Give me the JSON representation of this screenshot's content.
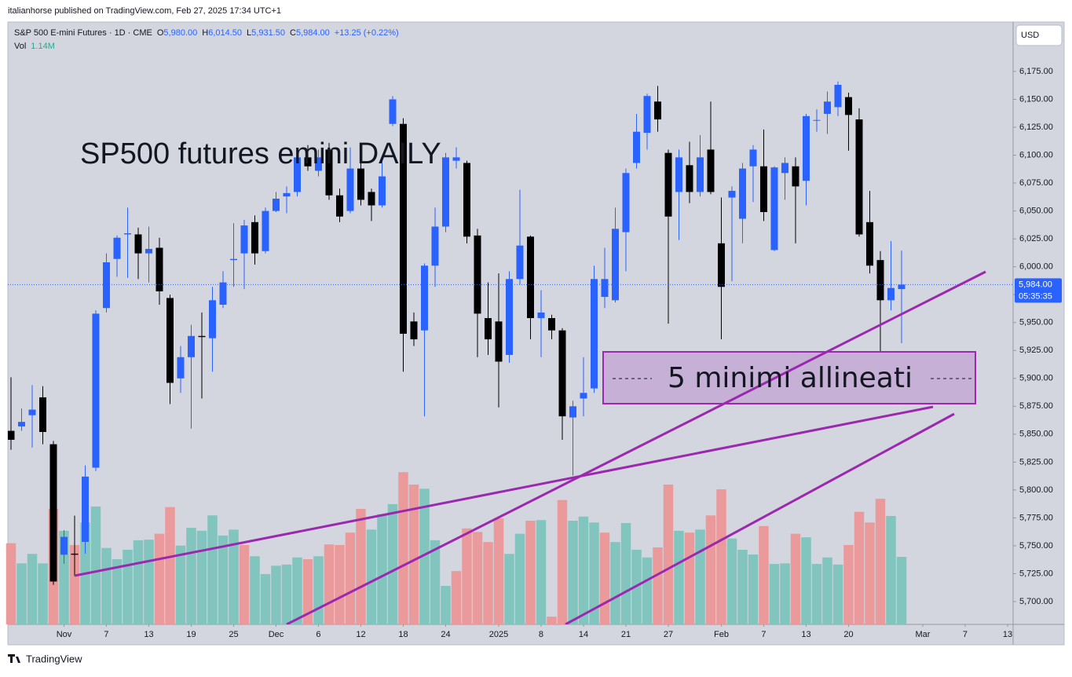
{
  "header": {
    "publisher": "italianhorse published on TradingView.com, Feb 27, 2025 17:34 UTC+1",
    "brand": "TradingView"
  },
  "legend": {
    "symbol": "S&P 500 E-mini Futures · 1D · CME",
    "o_label": "O",
    "o": "5,980.00",
    "h_label": "H",
    "h": "6,014.50",
    "l_label": "L",
    "l": "5,931.50",
    "c_label": "C",
    "c": "5,984.00",
    "change": "+13.25 (+0.22%)",
    "vol_label": "Vol",
    "vol": "1.14M"
  },
  "chart_data": {
    "type": "candlestick",
    "title": "SP500 futures emini DAILY",
    "title_color": "#f23645",
    "annotation": "5 minimi allineati",
    "currency": "USD",
    "last_price_label": "5,984.00",
    "countdown": "05:35:35",
    "up_color": "#2962ff",
    "down_color": "#000000",
    "grid": false,
    "open": [
      5853,
      5857,
      5867,
      5883,
      5841,
      5742,
      5743,
      5753.5,
      5820,
      5963,
      6007,
      6029,
      6029,
      6012,
      6017,
      5972,
      5900,
      5919,
      5938,
      5936,
      5966,
      6006,
      6012,
      6040,
      6014,
      6050,
      6063,
      6067,
      6098,
      6086,
      6105,
      6064,
      6050,
      6088,
      6067,
      6055,
      6128,
      6128,
      5951,
      5943,
      6001,
      6036,
      6095,
      6093,
      6028,
      5954,
      5951,
      5921,
      5989,
      6027,
      5954,
      5954,
      5943,
      5865,
      5882,
      5891,
      5973,
      5970,
      6031,
      6093,
      6120,
      6148,
      6102,
      6067,
      6091,
      6067,
      6105,
      6021,
      6062,
      6043,
      6090,
      6090,
      6015,
      6084,
      6090,
      6077,
      6131,
      6137,
      6143,
      6152,
      6132,
      6040,
      6006,
      5970,
      5980
    ],
    "high": [
      5901,
      5873,
      5894,
      5893,
      5844,
      5764,
      5777,
      5822,
      5961,
      6012,
      6028,
      6053,
      6035,
      6036,
      6026,
      5975,
      5929,
      5948,
      5959,
      5982,
      5996,
      6039,
      6042,
      6046,
      6053,
      6067,
      6072,
      6102,
      6109,
      6105,
      6111,
      6070,
      6107,
      6093,
      6070,
      6098,
      6153,
      6133,
      5959,
      6003,
      6053,
      6102,
      6107,
      6095,
      6034,
      5986,
      5994,
      5996,
      6069,
      6028,
      5979,
      5957,
      5945,
      5880,
      5919,
      6001,
      6017,
      6053,
      6088,
      6137,
      6155,
      6162,
      6105,
      6105,
      6112,
      6118,
      6148,
      6062,
      6072,
      6093,
      6109,
      6123,
      6090,
      6098,
      6098,
      6137,
      6141,
      6157,
      6166,
      6156,
      6142,
      6068,
      6014,
      6023,
      6014.5
    ],
    "low": [
      5836,
      5853,
      5838,
      5841,
      5715,
      5734,
      5723,
      5743,
      5817,
      5959,
      5991,
      5990,
      5989,
      5986,
      5966,
      5877,
      5887,
      5855,
      5882,
      5906,
      5963,
      5982,
      5980,
      6002,
      6012,
      6049,
      6048,
      6063,
      6086,
      6081,
      6060,
      6040,
      6048,
      6055,
      6041,
      6053,
      6126,
      5906,
      5929,
      5866,
      5982,
      6031,
      6088,
      6021,
      5919,
      5921,
      5874,
      5914,
      5984,
      5935,
      5919,
      5935,
      5845,
      5813,
      5866,
      5887,
      5963,
      5968,
      5996,
      6088,
      6105,
      6121,
      5949,
      6024,
      6057,
      6063,
      6065,
      5935,
      5987,
      6021,
      6058,
      6041,
      6014,
      6060,
      6021,
      6055,
      6121,
      6119,
      6135,
      6104,
      6027,
      5994,
      5924,
      5961,
      5931.5
    ],
    "close": [
      5845,
      5861,
      5872,
      5852,
      5718,
      5758,
      5742,
      5812,
      5958,
      6004,
      6026,
      6030,
      6012,
      6016,
      5978,
      5896,
      5919,
      5938,
      5937,
      5970,
      5986,
      6007,
      6037,
      6012,
      6050,
      6061,
      6066,
      6098,
      6090,
      6098,
      6064,
      6045,
      6088,
      6060,
      6055,
      6081,
      6150,
      5940,
      5935,
      6001,
      6036,
      6098,
      6098,
      6027,
      5958,
      5935,
      5915,
      5989,
      6019,
      5954,
      5959,
      5943,
      5866,
      5875,
      5887,
      5989,
      5989,
      6034,
      6084,
      6121,
      6153,
      6132,
      6045,
      6098,
      6067,
      6098,
      6067,
      5982,
      6068,
      6088,
      6105,
      6049,
      6089,
      6093,
      6072,
      6135,
      6131.5,
      6148,
      6163,
      6136,
      6029,
      6001,
      5970,
      5981,
      5984
    ],
    "volume": {
      "ylim": [
        0,
        10.17
      ],
      "values": [
        1.37,
        1.03,
        1.19,
        1.03,
        1.95,
        1.58,
        1.34,
        1.72,
        1.99,
        1.29,
        1.1,
        1.26,
        1.42,
        1.43,
        1.53,
        1.98,
        1.33,
        1.63,
        1.58,
        1.84,
        1.5,
        1.6,
        1.34,
        1.15,
        0.85,
        0.99,
        1.01,
        1.13,
        1.1,
        1.15,
        1.35,
        1.34,
        1.55,
        1.95,
        1.6,
        1.86,
        2.03,
        2.57,
        2.36,
        2.29,
        1.42,
        0.65,
        0.9,
        1.62,
        1.56,
        1.39,
        1.79,
        1.19,
        1.53,
        1.75,
        1.76,
        0.13,
        2.1,
        1.75,
        1.82,
        1.72,
        1.55,
        1.39,
        1.71,
        1.26,
        1.13,
        1.3,
        2.36,
        1.58,
        1.55,
        1.6,
        1.84,
        2.28,
        1.45,
        1.26,
        1.18,
        1.66,
        1.02,
        1.03,
        1.53,
        1.47,
        1.02,
        1.13,
        1.01,
        1.34,
        1.9,
        1.72,
        2.12,
        1.83,
        1.14
      ],
      "colors": [
        "#eb9a9c",
        "#82c4be",
        "#82c4be",
        "#82c4be",
        "#eb9a9c",
        "#82c4be",
        "#eb9a9c",
        "#82c4be",
        "#82c4be",
        "#82c4be",
        "#82c4be",
        "#82c4be",
        "#82c4be",
        "#82c4be",
        "#eb9a9c",
        "#eb9a9c",
        "#82c4be",
        "#82c4be",
        "#82c4be",
        "#82c4be",
        "#82c4be",
        "#82c4be",
        "#eb9a9c",
        "#82c4be",
        "#82c4be",
        "#82c4be",
        "#82c4be",
        "#82c4be",
        "#eb9a9c",
        "#82c4be",
        "#eb9a9c",
        "#eb9a9c",
        "#eb9a9c",
        "#eb9a9c",
        "#82c4be",
        "#82c4be",
        "#82c4be",
        "#eb9a9c",
        "#eb9a9c",
        "#82c4be",
        "#82c4be",
        "#82c4be",
        "#eb9a9c",
        "#eb9a9c",
        "#eb9a9c",
        "#eb9a9c",
        "#eb9a9c",
        "#82c4be",
        "#82c4be",
        "#eb9a9c",
        "#82c4be",
        "#eb9a9c",
        "#eb9a9c",
        "#82c4be",
        "#82c4be",
        "#82c4be",
        "#eb9a9c",
        "#82c4be",
        "#82c4be",
        "#82c4be",
        "#82c4be",
        "#eb9a9c",
        "#eb9a9c",
        "#82c4be",
        "#eb9a9c",
        "#82c4be",
        "#eb9a9c",
        "#eb9a9c",
        "#82c4be",
        "#82c4be",
        "#82c4be",
        "#eb9a9c",
        "#82c4be",
        "#82c4be",
        "#eb9a9c",
        "#82c4be",
        "#82c4be",
        "#82c4be",
        "#82c4be",
        "#eb9a9c",
        "#eb9a9c",
        "#eb9a9c",
        "#eb9a9c",
        "#82c4be",
        "#82c4be"
      ]
    },
    "ylim": [
      5679.6,
      6219.3
    ],
    "yticks": [
      {
        "value": 5700,
        "label": "5,700.00"
      },
      {
        "value": 5725,
        "label": "5,725.00"
      },
      {
        "value": 5750,
        "label": "5,750.00"
      },
      {
        "value": 5775,
        "label": "5,775.00"
      },
      {
        "value": 5800,
        "label": "5,800.00"
      },
      {
        "value": 5825,
        "label": "5,825.00"
      },
      {
        "value": 5850,
        "label": "5,850.00"
      },
      {
        "value": 5875,
        "label": "5,875.00"
      },
      {
        "value": 5900,
        "label": "5,900.00"
      },
      {
        "value": 5925,
        "label": "5,925.00"
      },
      {
        "value": 5950,
        "label": "5,950.00"
      },
      {
        "value": 5975,
        "label": "5,975.00"
      },
      {
        "value": 6000,
        "label": "6,000.00"
      },
      {
        "value": 6025,
        "label": "6,025.00"
      },
      {
        "value": 6050,
        "label": "6,050.00"
      },
      {
        "value": 6075,
        "label": "6,075.00"
      },
      {
        "value": 6100,
        "label": "6,100.00"
      },
      {
        "value": 6125,
        "label": "6,125.00"
      },
      {
        "value": 6150,
        "label": "6,150.00"
      },
      {
        "value": 6175,
        "label": "6,175.00"
      }
    ],
    "xlim": [
      -0.296,
      94.52
    ],
    "xticks": [
      {
        "value": 5,
        "label": "Nov"
      },
      {
        "value": 9,
        "label": "7"
      },
      {
        "value": 13,
        "label": "13"
      },
      {
        "value": 17,
        "label": "19"
      },
      {
        "value": 21,
        "label": "25"
      },
      {
        "value": 25,
        "label": "Dec"
      },
      {
        "value": 29,
        "label": "6"
      },
      {
        "value": 33,
        "label": "12"
      },
      {
        "value": 37,
        "label": "18"
      },
      {
        "value": 41,
        "label": "24"
      },
      {
        "value": 46,
        "label": "2025"
      },
      {
        "value": 50,
        "label": "8"
      },
      {
        "value": 54,
        "label": "14"
      },
      {
        "value": 58,
        "label": "21"
      },
      {
        "value": 62,
        "label": "27"
      },
      {
        "value": 67,
        "label": "Feb"
      },
      {
        "value": 71,
        "label": "7"
      },
      {
        "value": 75,
        "label": "13"
      },
      {
        "value": 79,
        "label": "20"
      },
      {
        "value": 86,
        "label": "Mar"
      },
      {
        "value": 90,
        "label": "7"
      },
      {
        "value": 94,
        "label": "13"
      }
    ]
  }
}
